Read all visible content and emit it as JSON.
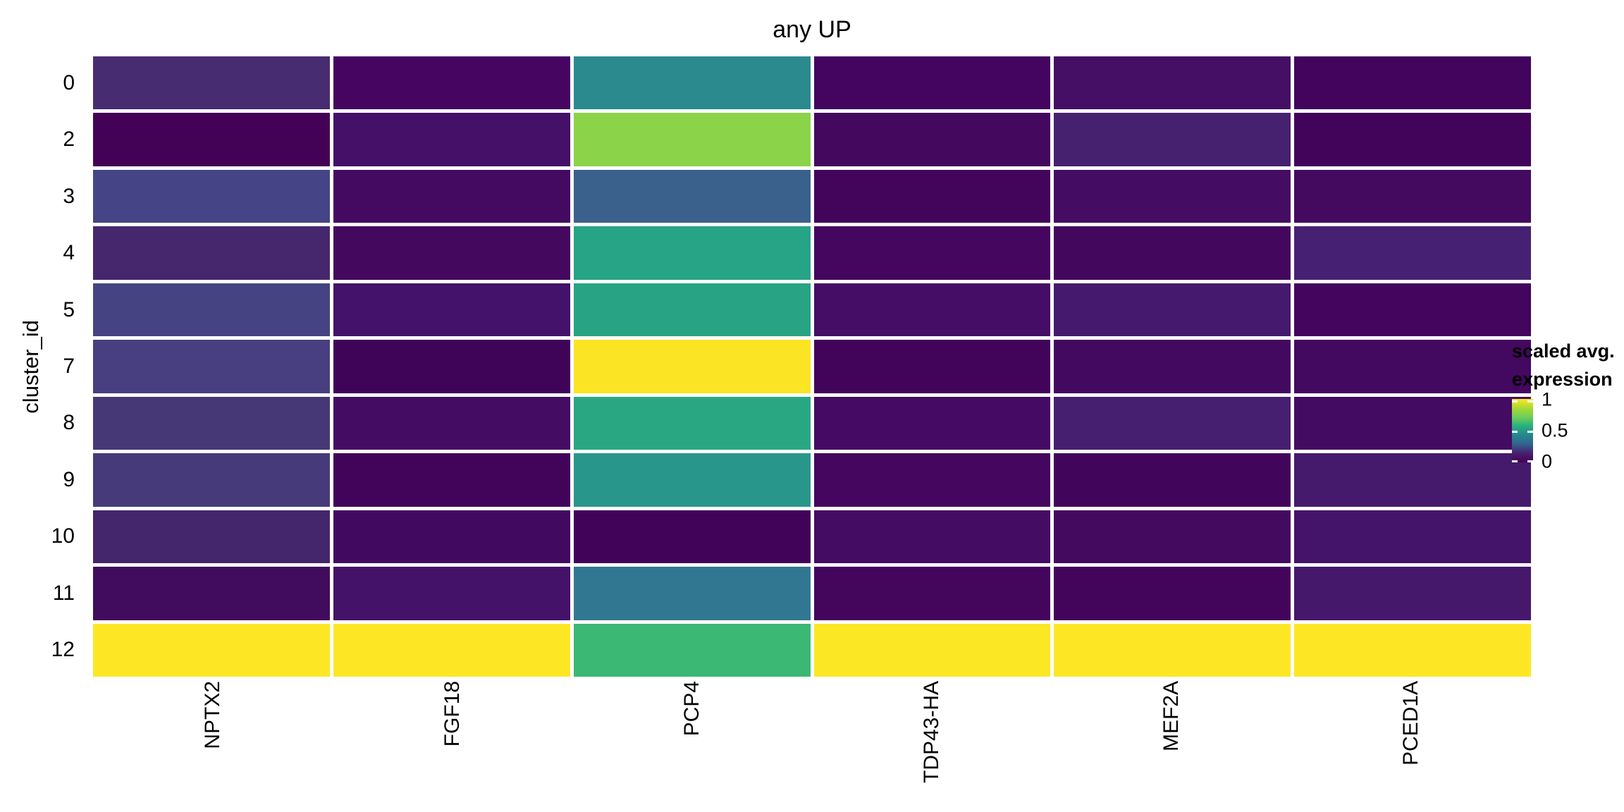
{
  "figure": {
    "title": "any UP",
    "y_axis_label": "cluster_id"
  },
  "legend": {
    "title_line1": "scaled avg.",
    "title_line2": "expression",
    "ticks": [
      {
        "label": "1",
        "value": 1
      },
      {
        "label": "0.5",
        "value": 0.5
      },
      {
        "label": "0",
        "value": 0
      }
    ],
    "gradient_stops": [
      "#fde725",
      "#a8db34",
      "#6ece58",
      "#28ae80",
      "#24878e",
      "#33638d",
      "#481f70",
      "#440154"
    ]
  },
  "chart_data": {
    "type": "heatmap",
    "title": "any UP",
    "ylabel": "cluster_id",
    "legend_title": "scaled avg. expression",
    "colorscale": "viridis",
    "value_range": [
      0,
      1
    ],
    "columns": [
      "NPTX2",
      "FGF18",
      "PCP4",
      "TDP43-HA",
      "MEF2A",
      "PCED1A"
    ],
    "rows": [
      "0",
      "2",
      "3",
      "4",
      "5",
      "7",
      "8",
      "9",
      "10",
      "11",
      "12"
    ],
    "values": [
      [
        0.13,
        0.02,
        0.44,
        0.02,
        0.05,
        0.01
      ],
      [
        0.0,
        0.05,
        0.78,
        0.03,
        0.1,
        0.01
      ],
      [
        0.21,
        0.03,
        0.31,
        0.01,
        0.04,
        0.03
      ],
      [
        0.12,
        0.03,
        0.57,
        0.02,
        0.02,
        0.1
      ],
      [
        0.2,
        0.06,
        0.56,
        0.04,
        0.08,
        0.02
      ],
      [
        0.19,
        0.0,
        0.99,
        0.01,
        0.03,
        0.03
      ],
      [
        0.16,
        0.04,
        0.58,
        0.03,
        0.09,
        0.03
      ],
      [
        0.17,
        0.01,
        0.49,
        0.02,
        0.02,
        0.08
      ],
      [
        0.11,
        0.03,
        0.01,
        0.04,
        0.03,
        0.06
      ],
      [
        0.04,
        0.05,
        0.37,
        0.02,
        0.02,
        0.07
      ],
      [
        1.0,
        1.0,
        0.64,
        0.99,
        1.0,
        1.0
      ]
    ],
    "cell_colors": [
      [
        "#482c72",
        "#450561",
        "#2a8a8d",
        "#440560",
        "#440f64",
        "#42045c"
      ],
      [
        "#440256",
        "#451068",
        "#8bd348",
        "#44085f",
        "#46216f",
        "#42035a"
      ],
      [
        "#454486",
        "#440a61",
        "#3a618c",
        "#43045b",
        "#440c62",
        "#430a60"
      ],
      [
        "#46276e",
        "#44085f",
        "#27a485",
        "#44065e",
        "#43075e",
        "#462173"
      ],
      [
        "#454382",
        "#44126a",
        "#28a384",
        "#450d66",
        "#451a6e",
        "#43055d"
      ],
      [
        "#473f7f",
        "#3f0458",
        "#fbe423",
        "#42045b",
        "#43085f",
        "#43085f"
      ],
      [
        "#463877",
        "#440c63",
        "#29a783",
        "#450b64",
        "#461f70",
        "#440b62"
      ],
      [
        "#463a7a",
        "#41045a",
        "#29968b",
        "#44065e",
        "#42055c",
        "#451a6d"
      ],
      [
        "#44266c",
        "#420961",
        "#410259",
        "#450c64",
        "#430a60",
        "#44146a"
      ],
      [
        "#410c5d",
        "#451269",
        "#327791",
        "#44055d",
        "#43055c",
        "#45186c"
      ],
      [
        "#fde725",
        "#fde725",
        "#3bb873",
        "#fce724",
        "#fde725",
        "#fde725"
      ]
    ]
  }
}
